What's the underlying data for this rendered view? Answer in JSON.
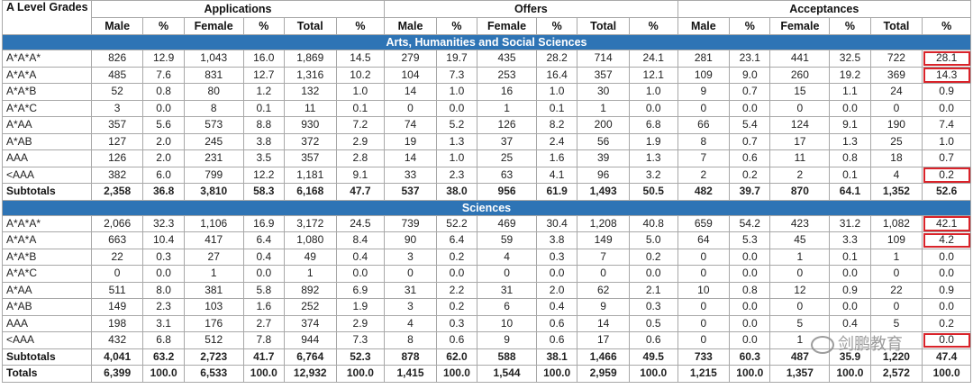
{
  "header": {
    "grades_label": "A Level Grades",
    "groups": [
      "Applications",
      "Offers",
      "Acceptances"
    ],
    "columns": [
      "Male",
      "%",
      "Female",
      "%",
      "Total",
      "%",
      "Male",
      "%",
      "Female",
      "%",
      "Total",
      "%",
      "Male",
      "%",
      "Female",
      "%",
      "Total",
      "%"
    ]
  },
  "sections": [
    {
      "title": "Arts, Humanities and Social Sciences",
      "rows": [
        {
          "grade": "A*A*A*",
          "values": [
            "826",
            "12.9",
            "1,043",
            "16.0",
            "1,869",
            "14.5",
            "279",
            "19.7",
            "435",
            "28.2",
            "714",
            "24.1",
            "281",
            "23.1",
            "441",
            "32.5",
            "722",
            "28.1"
          ],
          "highlight_last": true
        },
        {
          "grade": "A*A*A",
          "values": [
            "485",
            "7.6",
            "831",
            "12.7",
            "1,316",
            "10.2",
            "104",
            "7.3",
            "253",
            "16.4",
            "357",
            "12.1",
            "109",
            "9.0",
            "260",
            "19.2",
            "369",
            "14.3"
          ],
          "highlight_last": true
        },
        {
          "grade": "A*A*B",
          "values": [
            "52",
            "0.8",
            "80",
            "1.2",
            "132",
            "1.0",
            "14",
            "1.0",
            "16",
            "1.0",
            "30",
            "1.0",
            "9",
            "0.7",
            "15",
            "1.1",
            "24",
            "0.9"
          ]
        },
        {
          "grade": "A*A*C",
          "values": [
            "3",
            "0.0",
            "8",
            "0.1",
            "11",
            "0.1",
            "0",
            "0.0",
            "1",
            "0.1",
            "1",
            "0.0",
            "0",
            "0.0",
            "0",
            "0.0",
            "0",
            "0.0"
          ]
        },
        {
          "grade": "A*AA",
          "values": [
            "357",
            "5.6",
            "573",
            "8.8",
            "930",
            "7.2",
            "74",
            "5.2",
            "126",
            "8.2",
            "200",
            "6.8",
            "66",
            "5.4",
            "124",
            "9.1",
            "190",
            "7.4"
          ]
        },
        {
          "grade": "A*AB",
          "values": [
            "127",
            "2.0",
            "245",
            "3.8",
            "372",
            "2.9",
            "19",
            "1.3",
            "37",
            "2.4",
            "56",
            "1.9",
            "8",
            "0.7",
            "17",
            "1.3",
            "25",
            "1.0"
          ]
        },
        {
          "grade": "AAA",
          "values": [
            "126",
            "2.0",
            "231",
            "3.5",
            "357",
            "2.8",
            "14",
            "1.0",
            "25",
            "1.6",
            "39",
            "1.3",
            "7",
            "0.6",
            "11",
            "0.8",
            "18",
            "0.7"
          ]
        },
        {
          "grade": "<AAA",
          "values": [
            "382",
            "6.0",
            "799",
            "12.2",
            "1,181",
            "9.1",
            "33",
            "2.3",
            "63",
            "4.1",
            "96",
            "3.2",
            "2",
            "0.2",
            "2",
            "0.1",
            "4",
            "0.2"
          ],
          "highlight_last": true
        }
      ],
      "subtotal": {
        "grade": "Subtotals",
        "values": [
          "2,358",
          "36.8",
          "3,810",
          "58.3",
          "6,168",
          "47.7",
          "537",
          "38.0",
          "956",
          "61.9",
          "1,493",
          "50.5",
          "482",
          "39.7",
          "870",
          "64.1",
          "1,352",
          "52.6"
        ]
      }
    },
    {
      "title": "Sciences",
      "rows": [
        {
          "grade": "A*A*A*",
          "values": [
            "2,066",
            "32.3",
            "1,106",
            "16.9",
            "3,172",
            "24.5",
            "739",
            "52.2",
            "469",
            "30.4",
            "1,208",
            "40.8",
            "659",
            "54.2",
            "423",
            "31.2",
            "1,082",
            "42.1"
          ],
          "highlight_last": true
        },
        {
          "grade": "A*A*A",
          "values": [
            "663",
            "10.4",
            "417",
            "6.4",
            "1,080",
            "8.4",
            "90",
            "6.4",
            "59",
            "3.8",
            "149",
            "5.0",
            "64",
            "5.3",
            "45",
            "3.3",
            "109",
            "4.2"
          ],
          "highlight_last": true
        },
        {
          "grade": "A*A*B",
          "values": [
            "22",
            "0.3",
            "27",
            "0.4",
            "49",
            "0.4",
            "3",
            "0.2",
            "4",
            "0.3",
            "7",
            "0.2",
            "0",
            "0.0",
            "1",
            "0.1",
            "1",
            "0.0"
          ]
        },
        {
          "grade": "A*A*C",
          "values": [
            "0",
            "0.0",
            "1",
            "0.0",
            "1",
            "0.0",
            "0",
            "0.0",
            "0",
            "0.0",
            "0",
            "0.0",
            "0",
            "0.0",
            "0",
            "0.0",
            "0",
            "0.0"
          ]
        },
        {
          "grade": "A*AA",
          "values": [
            "511",
            "8.0",
            "381",
            "5.8",
            "892",
            "6.9",
            "31",
            "2.2",
            "31",
            "2.0",
            "62",
            "2.1",
            "10",
            "0.8",
            "12",
            "0.9",
            "22",
            "0.9"
          ]
        },
        {
          "grade": "A*AB",
          "values": [
            "149",
            "2.3",
            "103",
            "1.6",
            "252",
            "1.9",
            "3",
            "0.2",
            "6",
            "0.4",
            "9",
            "0.3",
            "0",
            "0.0",
            "0",
            "0.0",
            "0",
            "0.0"
          ]
        },
        {
          "grade": "AAA",
          "values": [
            "198",
            "3.1",
            "176",
            "2.7",
            "374",
            "2.9",
            "4",
            "0.3",
            "10",
            "0.6",
            "14",
            "0.5",
            "0",
            "0.0",
            "5",
            "0.4",
            "5",
            "0.2"
          ]
        },
        {
          "grade": "<AAA",
          "values": [
            "432",
            "6.8",
            "512",
            "7.8",
            "944",
            "7.3",
            "8",
            "0.6",
            "9",
            "0.6",
            "17",
            "0.6",
            "0",
            "0.0",
            "1",
            "",
            "",
            "0.0"
          ],
          "highlight_last": true
        }
      ],
      "subtotal": {
        "grade": "Subtotals",
        "values": [
          "4,041",
          "63.2",
          "2,723",
          "41.7",
          "6,764",
          "52.3",
          "878",
          "62.0",
          "588",
          "38.1",
          "1,466",
          "49.5",
          "733",
          "60.3",
          "487",
          "35.9",
          "1,220",
          "47.4"
        ]
      }
    }
  ],
  "totals": {
    "grade": "Totals",
    "values": [
      "6,399",
      "100.0",
      "6,533",
      "100.0",
      "12,932",
      "100.0",
      "1,415",
      "100.0",
      "1,544",
      "100.0",
      "2,959",
      "100.0",
      "1,215",
      "100.0",
      "1,357",
      "100.0",
      "2,572",
      "100.0"
    ]
  },
  "colors": {
    "section_bg": "#2e74b5",
    "highlight": "#d9232a"
  }
}
